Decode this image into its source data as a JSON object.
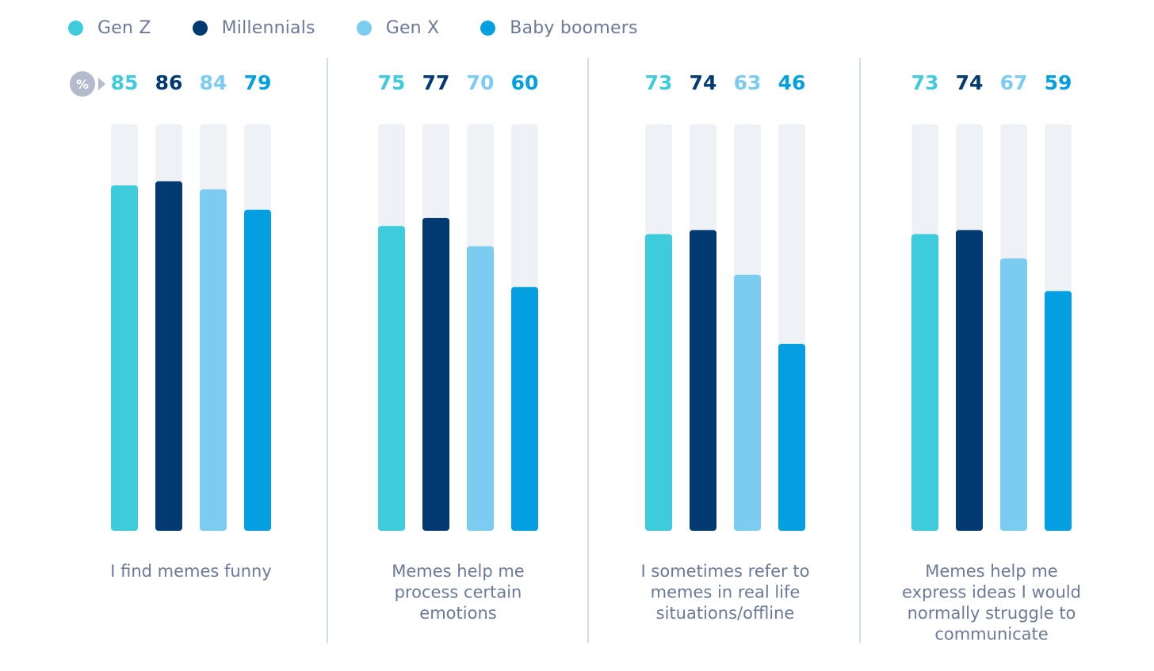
{
  "legend": [
    {
      "label": "Gen Z",
      "color": "#3ecbdb"
    },
    {
      "label": "Millennials",
      "color": "#003a70"
    },
    {
      "label": "Gen X",
      "color": "#7ccbf1"
    },
    {
      "label": "Baby boomers",
      "color": "#039fe0"
    }
  ],
  "unit_badge": "%",
  "chart_data": {
    "type": "bar",
    "unit": "%",
    "ylim": [
      0,
      100
    ],
    "series": [
      {
        "name": "Gen Z",
        "color": "#3ecbdb",
        "values": [
          85,
          75,
          73,
          73
        ]
      },
      {
        "name": "Millennials",
        "color": "#003a70",
        "values": [
          86,
          77,
          74,
          74
        ]
      },
      {
        "name": "Gen X",
        "color": "#7ccbf1",
        "values": [
          84,
          70,
          63,
          67
        ]
      },
      {
        "name": "Baby boomers",
        "color": "#039fe0",
        "values": [
          79,
          60,
          46,
          59
        ]
      }
    ],
    "categories": [
      [
        "I find memes funny"
      ],
      [
        "Memes help me",
        "process certain",
        "emotions"
      ],
      [
        "I sometimes refer to",
        "memes in real life",
        "situations/offline"
      ],
      [
        "Memes help me",
        "express ideas I would",
        "normally struggle to",
        "communicate"
      ]
    ]
  },
  "colors": {
    "track": "#eef1f5",
    "divider": "#d5dde8",
    "category_text": "#6b7a99"
  }
}
